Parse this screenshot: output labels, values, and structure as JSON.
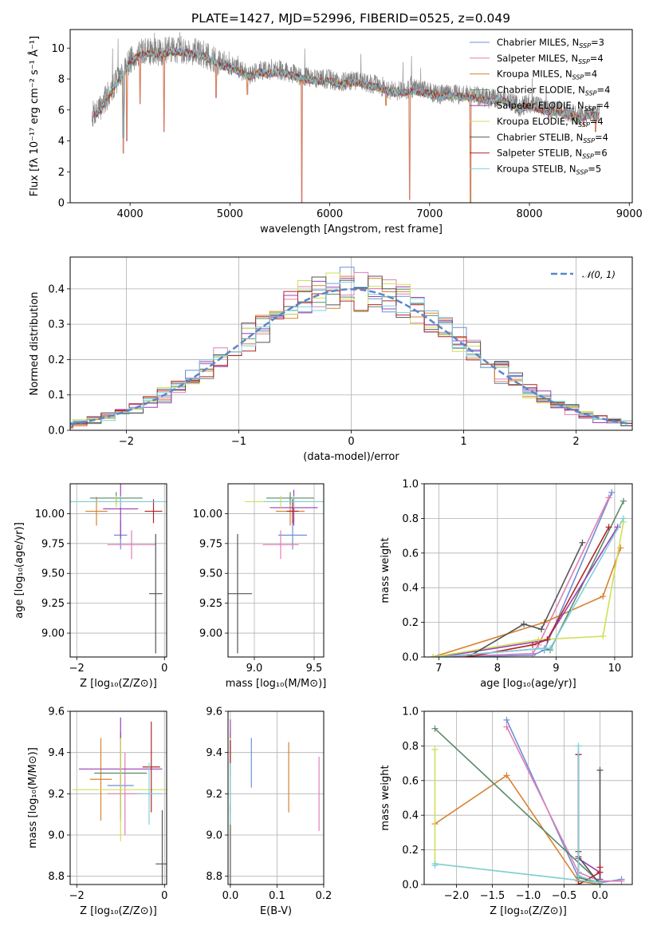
{
  "title": "PLATE=1427, MJD=52996, FIBERID=0525, z=0.049",
  "colors": [
    "#6b8fd6",
    "#e07fb6",
    "#d8822f",
    "#5b8a69",
    "#9c3fb5",
    "#d1df55",
    "#555555",
    "#b0272c",
    "#7ed0dc"
  ],
  "chart_data": [
    {
      "id": "spectrum",
      "type": "line",
      "xlabel": "wavelength [Angstrom, rest frame]",
      "ylabel": "Flux [fλ 10⁻¹⁷ erg cm⁻² s⁻¹ Å⁻¹]",
      "xlim": [
        3400,
        9030
      ],
      "ylim": [
        0,
        11.2
      ],
      "xticks": [
        "4000",
        "5000",
        "6000",
        "7000",
        "8000",
        "9000"
      ],
      "yticks": [
        "0",
        "2",
        "4",
        "6",
        "8",
        "10"
      ],
      "legend": "top-right",
      "legend_entries": [
        "Chabrier MILES, N_SSP=3",
        "Salpeter MILES, N_SSP=4",
        "Kroupa MILES, N_SSP=4",
        "Chabrier ELODIE, N_SSP=4",
        "Salpeter ELODIE, N_SSP=4",
        "Kroupa ELODIE, N_SSP=4",
        "Chabrier STELIB, N_SSP=4",
        "Salpeter STELIB, N_SSP=6",
        "Kroupa STELIB, N_SSP=5"
      ],
      "envelope": [
        [
          3620,
          5.7
        ],
        [
          3700,
          6.1
        ],
        [
          3800,
          7.2
        ],
        [
          3900,
          8.2
        ],
        [
          4000,
          9.2
        ],
        [
          4100,
          9.7
        ],
        [
          4200,
          9.8
        ],
        [
          4300,
          9.7
        ],
        [
          4400,
          9.9
        ],
        [
          4500,
          9.9
        ],
        [
          4600,
          9.8
        ],
        [
          4700,
          9.7
        ],
        [
          4800,
          9.4
        ],
        [
          4900,
          9.0
        ],
        [
          5000,
          8.9
        ],
        [
          5100,
          8.6
        ],
        [
          5200,
          8.3
        ],
        [
          5300,
          8.6
        ],
        [
          5400,
          8.5
        ],
        [
          5500,
          8.6
        ],
        [
          5600,
          8.4
        ],
        [
          5700,
          8.2
        ],
        [
          5800,
          8.1
        ],
        [
          5900,
          8.0
        ],
        [
          6000,
          8.0
        ],
        [
          6100,
          7.8
        ],
        [
          6200,
          7.9
        ],
        [
          6300,
          7.9
        ],
        [
          6400,
          7.7
        ],
        [
          6500,
          7.6
        ],
        [
          6600,
          7.3
        ],
        [
          6700,
          7.2
        ],
        [
          6800,
          7.4
        ],
        [
          6900,
          7.3
        ],
        [
          7000,
          7.2
        ],
        [
          7100,
          7.0
        ],
        [
          7200,
          7.1
        ],
        [
          7300,
          7.0
        ],
        [
          7400,
          7.0
        ],
        [
          7500,
          6.9
        ],
        [
          7600,
          6.7
        ],
        [
          7700,
          6.8
        ],
        [
          7800,
          6.6
        ],
        [
          7900,
          6.2
        ],
        [
          8000,
          6.4
        ],
        [
          8100,
          6.2
        ],
        [
          8200,
          6.0
        ],
        [
          8300,
          6.0
        ],
        [
          8400,
          5.8
        ],
        [
          8500,
          5.6
        ],
        [
          8600,
          5.8
        ],
        [
          8700,
          5.8
        ]
      ],
      "absorption": [
        [
          3933,
          3.2
        ],
        [
          3968,
          4.0
        ],
        [
          4101,
          6.4
        ],
        [
          4340,
          4.6
        ],
        [
          4861,
          6.8
        ],
        [
          5175,
          7.0
        ],
        [
          5720,
          0.0
        ],
        [
          6563,
          6.3
        ],
        [
          6800,
          0.2
        ],
        [
          7410,
          0.0
        ],
        [
          8542,
          5.0
        ],
        [
          8662,
          4.6
        ]
      ]
    },
    {
      "id": "residuals",
      "type": "step",
      "xlabel": "(data-model)/error",
      "ylabel": "Normed distribution",
      "xlim": [
        -2.5,
        2.5
      ],
      "ylim": [
        0,
        0.49
      ],
      "xticks": [
        "−2",
        "−1",
        "0",
        "1",
        "2"
      ],
      "yticks": [
        "0.0",
        "0.1",
        "0.2",
        "0.3",
        "0.4"
      ],
      "legend": "top-right",
      "legend_entries": [
        "𝒩(0, 1)"
      ],
      "bin_width": 0.125,
      "gaussian_mean": 0,
      "gaussian_sigma": 1
    },
    {
      "id": "age-vs-z",
      "type": "scatter",
      "xlabel": "Z [log₁₀(Z/Z⊙)]",
      "ylabel": "age  [log₁₀(age/yr)]",
      "xlim": [
        -2.15,
        0.05
      ],
      "ylim": [
        8.8,
        10.25
      ],
      "xticks": [
        "−2",
        "0"
      ],
      "yticks": [
        "9.00",
        "9.25",
        "9.50",
        "9.75",
        "10.00"
      ],
      "points": [
        {
          "x": -1.0,
          "y": 9.82,
          "xerr": 0.15,
          "yerr": 0.12
        },
        {
          "x": -0.75,
          "y": 9.74,
          "xerr": 0.55,
          "yerr": 0.12
        },
        {
          "x": -1.55,
          "y": 10.02,
          "xerr": 0.25,
          "yerr": 0.12
        },
        {
          "x": -1.1,
          "y": 10.13,
          "xerr": 0.6,
          "yerr": 0.05
        },
        {
          "x": -1.0,
          "y": 10.04,
          "xerr": 0.4,
          "yerr": 0.25
        },
        {
          "x": -1.1,
          "y": 10.1,
          "xerr": 0.8,
          "yerr": 0.05
        },
        {
          "x": -0.2,
          "y": 9.33,
          "xerr": 0.15,
          "yerr": 0.5
        },
        {
          "x": -0.25,
          "y": 10.02,
          "xerr": 0.2,
          "yerr": 0.1
        },
        {
          "x": -1.0,
          "y": 10.1,
          "xerr": 1.2,
          "yerr": 0.05
        }
      ]
    },
    {
      "id": "age-vs-mass",
      "type": "scatter",
      "xlabel": "mass [log₁₀(M/M⊙)]",
      "ylabel": "",
      "xlim": [
        8.78,
        9.58
      ],
      "ylim": [
        8.8,
        10.25
      ],
      "xticks": [
        "9.0",
        "9.5"
      ],
      "yticks": [
        "9.00",
        "9.25",
        "9.50",
        "9.75",
        "10.00"
      ],
      "points": [
        {
          "x": 9.32,
          "y": 9.82,
          "xerr": 0.12,
          "yerr": 0.12
        },
        {
          "x": 9.22,
          "y": 9.74,
          "xerr": 0.15,
          "yerr": 0.12
        },
        {
          "x": 9.3,
          "y": 10.02,
          "xerr": 0.12,
          "yerr": 0.12
        },
        {
          "x": 9.3,
          "y": 10.13,
          "xerr": 0.2,
          "yerr": 0.05
        },
        {
          "x": 9.33,
          "y": 10.05,
          "xerr": 0.2,
          "yerr": 0.15
        },
        {
          "x": 9.22,
          "y": 10.1,
          "xerr": 0.3,
          "yerr": 0.05
        },
        {
          "x": 8.86,
          "y": 9.33,
          "xerr": 0.12,
          "yerr": 0.5
        },
        {
          "x": 9.32,
          "y": 10.02,
          "xerr": 0.05,
          "yerr": 0.1
        },
        {
          "x": 9.33,
          "y": 10.1,
          "xerr": 0.25,
          "yerr": 0.05
        }
      ]
    },
    {
      "id": "mass-weight-vs-age",
      "type": "line",
      "xlabel": "age  [log₁₀(age/yr)]",
      "ylabel": "mass weight",
      "xlim": [
        6.75,
        10.3
      ],
      "ylim": [
        0,
        1.0
      ],
      "xticks": [
        "7",
        "8",
        "9",
        "10"
      ],
      "yticks": [
        "0.0",
        "0.2",
        "0.4",
        "0.6",
        "0.8",
        "1.0"
      ],
      "series": [
        {
          "x": [
            7.0,
            8.6,
            8.8,
            9.95
          ],
          "y": [
            0.0,
            0.01,
            0.04,
            0.95
          ]
        },
        {
          "x": [
            7.0,
            8.6,
            8.7,
            9.9
          ],
          "y": [
            0.0,
            0.02,
            0.07,
            0.92
          ]
        },
        {
          "x": [
            6.9,
            8.8,
            9.8,
            10.1
          ],
          "y": [
            0.0,
            0.2,
            0.35,
            0.63
          ]
        },
        {
          "x": [
            7.0,
            8.8,
            8.9,
            10.15
          ],
          "y": [
            0.0,
            0.05,
            0.04,
            0.9
          ]
        },
        {
          "x": [
            7.0,
            8.7,
            8.85,
            10.05
          ],
          "y": [
            0.0,
            0.09,
            0.1,
            0.75
          ]
        },
        {
          "x": [
            6.9,
            8.7,
            9.8,
            10.15
          ],
          "y": [
            0.0,
            0.1,
            0.12,
            0.78
          ]
        },
        {
          "x": [
            7.5,
            8.45,
            8.75,
            9.45
          ],
          "y": [
            0.0,
            0.19,
            0.16,
            0.66
          ]
        },
        {
          "x": [
            7.5,
            8.6,
            8.85,
            9.9
          ],
          "y": [
            0.0,
            0.07,
            0.1,
            0.75
          ]
        },
        {
          "x": [
            7.0,
            8.8,
            8.9,
            10.15
          ],
          "y": [
            0.0,
            0.05,
            0.05,
            0.8
          ]
        }
      ]
    },
    {
      "id": "mass-vs-z",
      "type": "scatter",
      "xlabel": "Z [log₁₀(Z/Z⊙)]",
      "ylabel": "mass [log₁₀(M/M⊙)]",
      "xlim": [
        -2.15,
        0.05
      ],
      "ylim": [
        8.76,
        9.6
      ],
      "xticks": [
        "−2",
        "0"
      ],
      "yticks": [
        "8.8",
        "9.0",
        "9.2",
        "9.4",
        "9.6"
      ],
      "points": [
        {
          "x": -1.0,
          "y": 9.24,
          "xerr": 0.3,
          "yerr": 0.1
        },
        {
          "x": -0.9,
          "y": 9.2,
          "xerr": 0.4,
          "yerr": 0.2
        },
        {
          "x": -1.45,
          "y": 9.27,
          "xerr": 0.25,
          "yerr": 0.2
        },
        {
          "x": -1.0,
          "y": 9.3,
          "xerr": 0.6,
          "yerr": 0.2
        },
        {
          "x": -1.0,
          "y": 9.32,
          "xerr": 0.95,
          "yerr": 0.25
        },
        {
          "x": -1.0,
          "y": 9.22,
          "xerr": 1.1,
          "yerr": 0.25
        },
        {
          "x": -0.05,
          "y": 8.86,
          "xerr": 0.15,
          "yerr": 0.26
        },
        {
          "x": -0.3,
          "y": 9.33,
          "xerr": 0.2,
          "yerr": 0.22
        },
        {
          "x": -0.35,
          "y": 9.2,
          "xerr": 0.3,
          "yerr": 0.15
        }
      ]
    },
    {
      "id": "mass-vs-ebv",
      "type": "scatter",
      "xlabel": "E(B-V)",
      "ylabel": "",
      "xlim": [
        -0.005,
        0.2
      ],
      "ylim": [
        8.76,
        9.6
      ],
      "xticks": [
        "0.0",
        "0.1",
        "0.2"
      ],
      "yticks": [
        "8.8",
        "9.0",
        "9.2",
        "9.4",
        "9.6"
      ],
      "points": [
        {
          "x": 0.045,
          "y": 9.35,
          "xerr": 0,
          "yerr": 0.12
        },
        {
          "x": 0.19,
          "y": 9.2,
          "xerr": 0,
          "yerr": 0.18
        },
        {
          "x": 0.125,
          "y": 9.28,
          "xerr": 0,
          "yerr": 0.17
        },
        {
          "x": 0.0,
          "y": 9.3,
          "xerr": 0,
          "yerr": 0.2
        },
        {
          "x": 0.0,
          "y": 9.42,
          "xerr": 0,
          "yerr": 0.14
        },
        {
          "x": 0.0,
          "y": 9.22,
          "xerr": 0,
          "yerr": 0.25
        },
        {
          "x": 0.0,
          "y": 8.95,
          "xerr": 0,
          "yerr": 0.2
        },
        {
          "x": 0.0,
          "y": 9.4,
          "xerr": 0,
          "yerr": 0.06
        },
        {
          "x": 0.0,
          "y": 9.2,
          "xerr": 0,
          "yerr": 0.15
        }
      ]
    },
    {
      "id": "mass-weight-vs-z",
      "type": "line",
      "xlabel": "Z [log₁₀(Z/Z⊙)]",
      "ylabel": "mass weight",
      "xlim": [
        -2.45,
        0.45
      ],
      "ylim": [
        0,
        1.0
      ],
      "xticks": [
        "−2.0",
        "−1.5",
        "−1.0",
        "−0.5",
        "0.0"
      ],
      "yticks": [
        "0.0",
        "0.2",
        "0.4",
        "0.6",
        "0.8",
        "1.0"
      ],
      "series": [
        {
          "x": [
            -1.3,
            -0.3,
            0.0,
            0.3
          ],
          "y": [
            0.95,
            0.04,
            0.01,
            0.03
          ]
        },
        {
          "x": [
            -1.3,
            -0.3,
            0.0,
            0.3
          ],
          "y": [
            0.91,
            0.07,
            0.02,
            0.02
          ]
        },
        {
          "x": [
            -2.3,
            -1.3,
            -0.3,
            0.0
          ],
          "y": [
            0.35,
            0.63,
            0.02,
            0.0
          ]
        },
        {
          "x": [
            -2.3,
            0.0,
            -0.3,
            -0.3
          ],
          "y": [
            0.9,
            0.01,
            0.04,
            0.05
          ]
        },
        {
          "x": [
            -0.3,
            -0.3,
            0.0,
            0.0
          ],
          "y": [
            0.75,
            0.15,
            0.07,
            0.03
          ]
        },
        {
          "x": [
            -2.3,
            -2.3,
            0.0,
            0.0
          ],
          "y": [
            0.78,
            0.12,
            0.01,
            0.0
          ]
        },
        {
          "x": [
            0.0,
            0.0,
            -0.3,
            -0.3
          ],
          "y": [
            0.66,
            0.0,
            0.16,
            0.19
          ]
        },
        {
          "x": [
            0.0,
            0.0,
            -0.3,
            -0.3
          ],
          "y": [
            0.1,
            0.07,
            0.0,
            0.75
          ]
        },
        {
          "x": [
            -2.3,
            -2.3,
            0.0,
            -0.3,
            -0.3
          ],
          "y": [
            0.11,
            0.12,
            0.01,
            0.05,
            0.8
          ]
        }
      ]
    }
  ]
}
